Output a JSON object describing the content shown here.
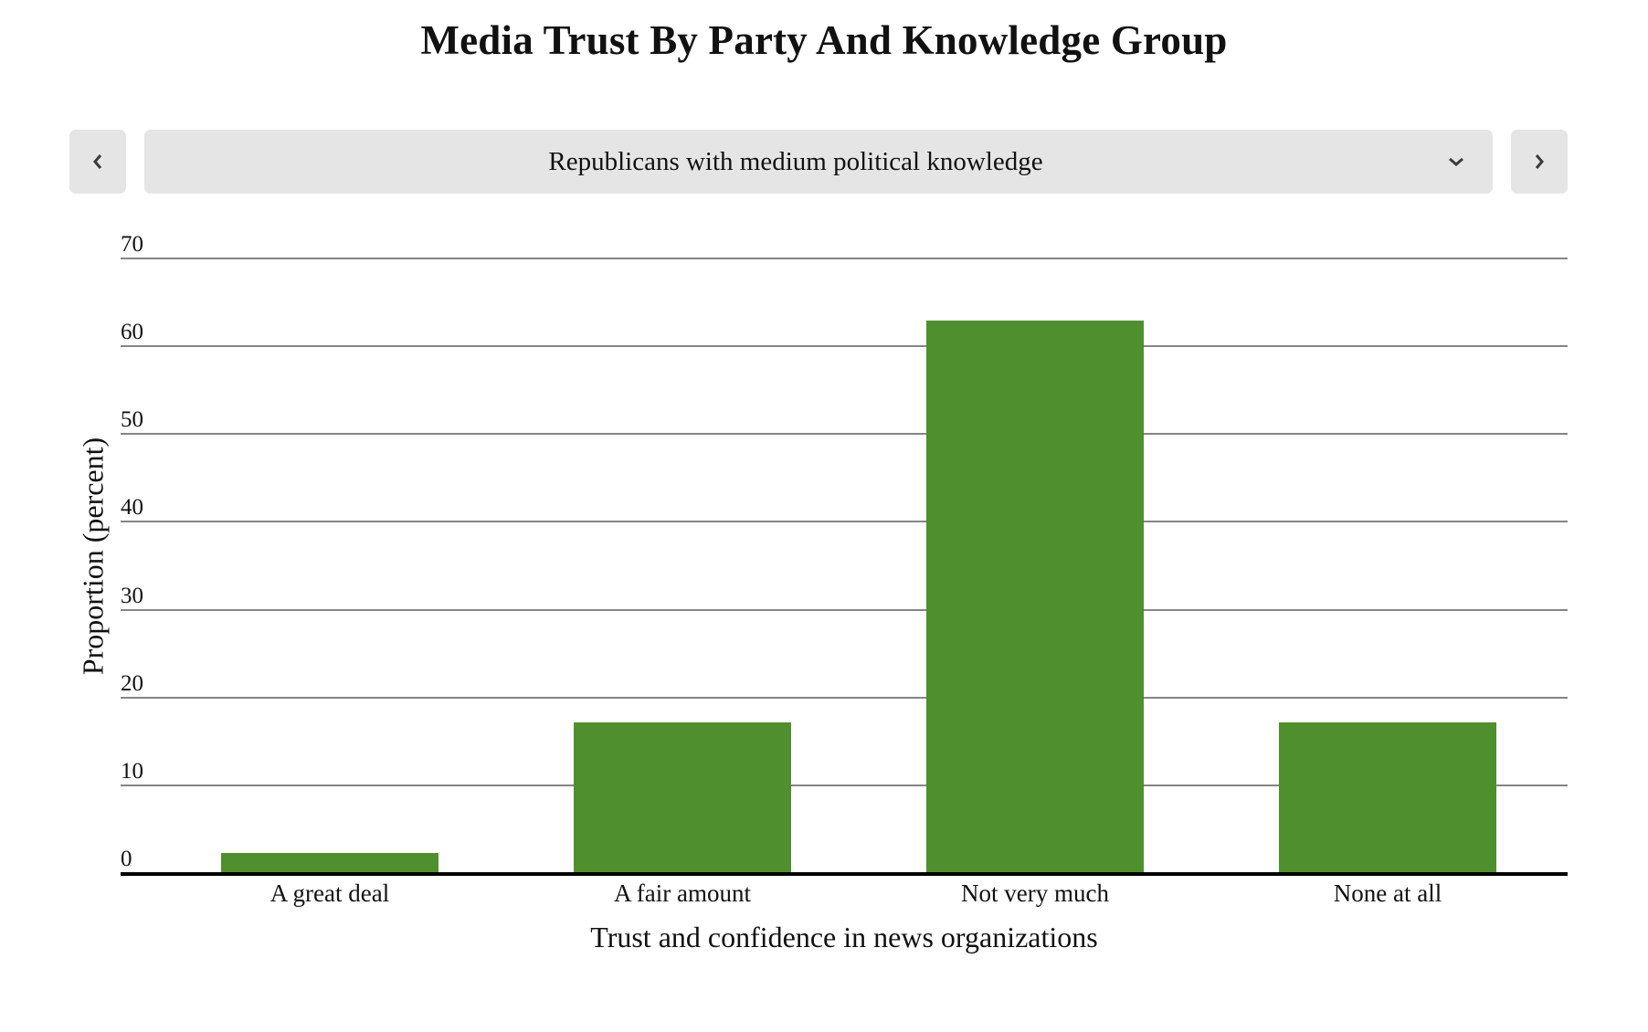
{
  "page": {
    "title": "Media Trust By Party And Knowledge Group"
  },
  "controls": {
    "prev_icon": "chevron-left-icon",
    "next_icon": "chevron-right-icon",
    "dropdown_icon": "chevron-down-icon",
    "selected_group": "Republicans with medium political knowledge"
  },
  "colors": {
    "bar": "#4f8f2e",
    "control_bg": "#e5e5e5",
    "gridline": "#858585",
    "axis": "#000000"
  },
  "chart_data": {
    "type": "bar",
    "title": "Media Trust By Party And Knowledge Group",
    "subtitle": "Republicans with medium political knowledge",
    "categories": [
      "A great deal",
      "A fair amount",
      "Not very much",
      "None at all"
    ],
    "values": [
      2.3,
      17.2,
      62.9,
      17.2
    ],
    "xlabel": "Trust and confidence in news organizations",
    "ylabel": "Proportion (percent)",
    "ylim": [
      0,
      70
    ],
    "yticks": [
      0,
      10,
      20,
      30,
      40,
      50,
      60,
      70
    ],
    "grid": true,
    "legend": null,
    "bar_color": "#4f8f2e"
  }
}
